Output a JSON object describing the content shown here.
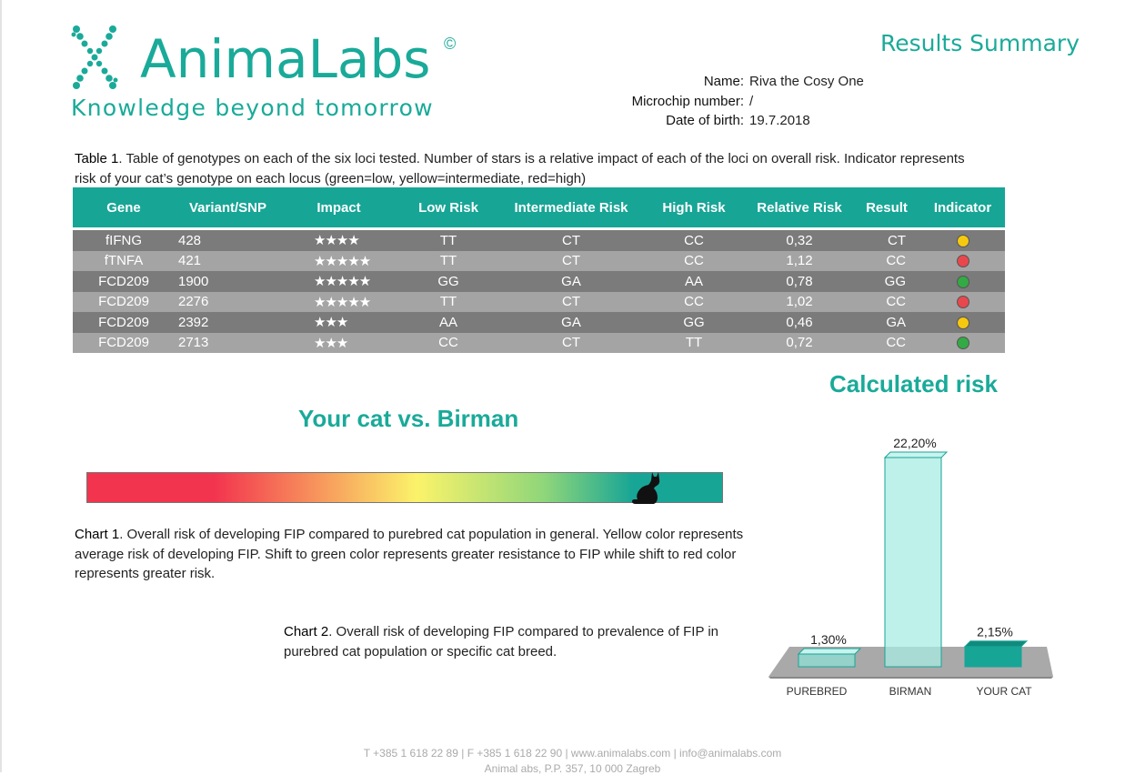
{
  "brand": {
    "name": "AnimaLabs",
    "copyright": "©",
    "tagline": "Knowledge beyond tomorrow",
    "logo_icon": "dna-helix-icon",
    "color": "#1aaa99"
  },
  "report_title": "Results Summary",
  "patient": {
    "name_label": "Name:",
    "name": "Riva the Cosy One",
    "chip_label": "Microchip number:",
    "chip": "/",
    "dob_label": "Date of birth:",
    "dob": "19.7.2018"
  },
  "table1": {
    "caption_bold": "Table 1",
    "caption_text": ". Table of genotypes on each of the six loci tested. Number of stars is a relative impact of each of the loci on overall risk. Indicator represents risk of your cat’s genotype on each locus (green=low, yellow=intermediate, red=high)",
    "headers": [
      "Gene",
      "Variant/SNP",
      "Impact",
      "Low Risk",
      "Intermediate Risk",
      "High Risk",
      "Relative Risk",
      "Result",
      "Indicator"
    ],
    "rows": [
      {
        "gene": "fIFNG",
        "snp": "428",
        "impact": "★★★★",
        "low": "TT",
        "mid": "CT",
        "high": "CC",
        "rr": "0,32",
        "result": "CT",
        "indicator": "yellow"
      },
      {
        "gene": "fTNFA",
        "snp": "421",
        "impact": "★★★★★",
        "low": "TT",
        "mid": "CT",
        "high": "CC",
        "rr": "1,12",
        "result": "CC",
        "indicator": "red"
      },
      {
        "gene": "FCD209",
        "snp": "1900",
        "impact": "★★★★★",
        "low": "GG",
        "mid": "GA",
        "high": "AA",
        "rr": "0,78",
        "result": "GG",
        "indicator": "green"
      },
      {
        "gene": "FCD209",
        "snp": "2276",
        "impact": "★★★★★",
        "low": "TT",
        "mid": "CT",
        "high": "CC",
        "rr": "1,02",
        "result": "CC",
        "indicator": "red"
      },
      {
        "gene": "FCD209",
        "snp": "2392",
        "impact": "★★★",
        "low": "AA",
        "mid": "GA",
        "high": "GG",
        "rr": "0,46",
        "result": "GA",
        "indicator": "yellow"
      },
      {
        "gene": "FCD209",
        "snp": "2713",
        "impact": "★★★",
        "low": "CC",
        "mid": "CT",
        "high": "TT",
        "rr": "0,72",
        "result": "CC",
        "indicator": "green"
      }
    ],
    "indicator_colors": {
      "green": "#33aa44",
      "yellow": "#f5c90f",
      "red": "#e8474e"
    }
  },
  "chart1": {
    "title": "Your cat vs. Birman",
    "marker_icon": "cat-silhouette-icon",
    "marker_position": 0.88,
    "caption_bold": "Chart 1",
    "caption_text": ". Overall risk of developing FIP compared to purebred cat population in general. Yellow color represents average risk of developing FIP. Shift to green color represents greater resistance to FIP while shift to red color represents greater risk."
  },
  "chart2": {
    "caption_bold": "Chart 2",
    "caption_text": ". Overall risk of developing FIP compared to  prevalence of FIP in purebred cat population or specific cat breed."
  },
  "chart_data": {
    "type": "bar",
    "title": "Calculated risk",
    "categories": [
      "PUREBRED",
      "BIRMAN",
      "YOUR CAT"
    ],
    "values": [
      1.3,
      22.2,
      2.15
    ],
    "labels": [
      "1,30%",
      "22,20%",
      "2,15%"
    ],
    "ylim": [
      0,
      22.2
    ],
    "colors": [
      "#8fe0d5",
      "#a8ece3",
      "#17a596"
    ]
  },
  "footer": {
    "line1": "T +385 1 618 22 89  |  F +385 1 618 22 90  |  www.animalabs.com  |  info@animalabs.com",
    "line2": "Animal abs, P.P. 357, 10 000 Zagreb"
  }
}
